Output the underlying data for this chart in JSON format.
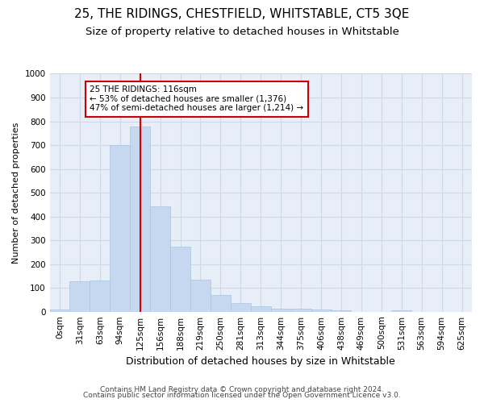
{
  "title": "25, THE RIDINGS, CHESTFIELD, WHITSTABLE, CT5 3QE",
  "subtitle": "Size of property relative to detached houses in Whitstable",
  "xlabel": "Distribution of detached houses by size in Whitstable",
  "ylabel": "Number of detached properties",
  "footer_line1": "Contains HM Land Registry data © Crown copyright and database right 2024.",
  "footer_line2": "Contains public sector information licensed under the Open Government Licence v3.0.",
  "bar_labels": [
    "0sqm",
    "31sqm",
    "63sqm",
    "94sqm",
    "125sqm",
    "156sqm",
    "188sqm",
    "219sqm",
    "250sqm",
    "281sqm",
    "313sqm",
    "344sqm",
    "375sqm",
    "406sqm",
    "438sqm",
    "469sqm",
    "500sqm",
    "531sqm",
    "563sqm",
    "594sqm",
    "625sqm"
  ],
  "bar_values": [
    8,
    128,
    130,
    700,
    778,
    443,
    275,
    133,
    71,
    37,
    22,
    13,
    13,
    10,
    5,
    0,
    0,
    7,
    0,
    0,
    0
  ],
  "bar_color": "#c5d8f0",
  "bar_edge_color": "#a8c4e0",
  "bar_width": 1.0,
  "vline_x": 4.0,
  "vline_color": "#dd0000",
  "annotation_text": "25 THE RIDINGS: 116sqm\n← 53% of detached houses are smaller (1,376)\n47% of semi-detached houses are larger (1,214) →",
  "annotation_box_color": "white",
  "annotation_box_edge": "#cc0000",
  "ylim": [
    0,
    1000
  ],
  "yticks": [
    0,
    100,
    200,
    300,
    400,
    500,
    600,
    700,
    800,
    900,
    1000
  ],
  "grid_color": "#d0d8e8",
  "background_color": "#e8eef8",
  "title_fontsize": 11,
  "subtitle_fontsize": 9.5,
  "xlabel_fontsize": 9,
  "ylabel_fontsize": 8,
  "tick_fontsize": 7.5,
  "annotation_fontsize": 7.5,
  "footer_fontsize": 6.5
}
